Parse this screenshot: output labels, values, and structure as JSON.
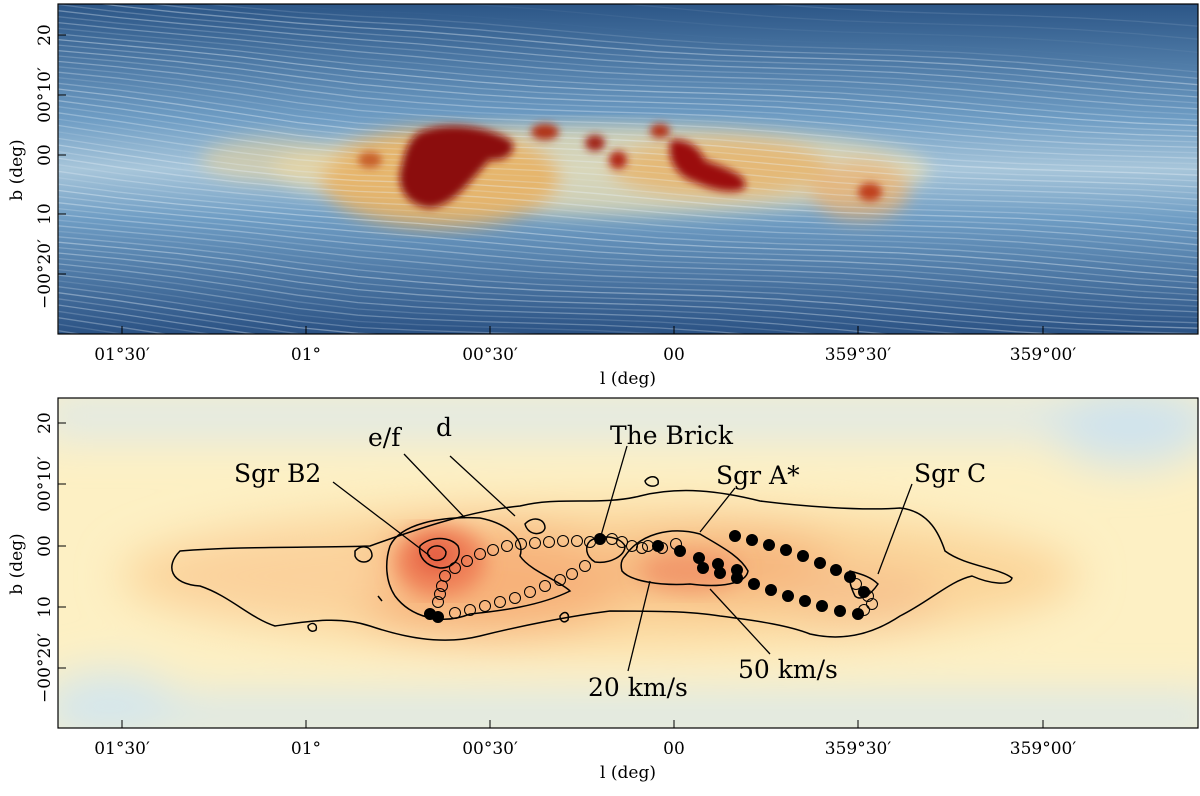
{
  "top_panel": {
    "ylabel": "b (deg)",
    "xlabel": "l (deg)",
    "y_ticks": [
      "20",
      "00°10′",
      "00",
      "10",
      "−00°20′"
    ],
    "x_ticks": [
      "01°30′",
      "01°",
      "00°30′",
      "00",
      "359°30′",
      "359°00′"
    ]
  },
  "bottom_panel": {
    "ylabel": "b (deg)",
    "xlabel": "l (deg)",
    "y_ticks": [
      "20",
      "00°10′",
      "00",
      "10",
      "−00°20′"
    ],
    "x_ticks": [
      "01°30′",
      "01°",
      "00°30′",
      "00",
      "359°30′",
      "359°00′"
    ],
    "labels": {
      "sgr_b2": "Sgr B2",
      "ef": "e/f",
      "d": "d",
      "brick": "The Brick",
      "sgr_a": "Sgr A*",
      "sgr_c": "Sgr C",
      "kms20": "20 km/s",
      "kms50": "50 km/s"
    }
  },
  "colors": {
    "streamline_blue": "#2f5f9a",
    "dense_red": "#8b0a0a",
    "warm_orange": "#f4a262",
    "pale_yellow": "#fde9b0",
    "pale_blue": "#cfe3ee"
  }
}
